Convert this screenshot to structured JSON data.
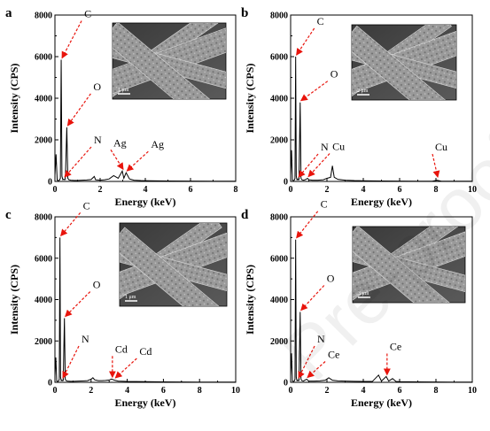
{
  "watermark": "Pre-proof",
  "chart_data": [
    {
      "type": "line",
      "panel": "a",
      "xlabel": "Energy (keV)",
      "ylabel": "Intensity (CPS)",
      "xlim": [
        0,
        8
      ],
      "ylim": [
        0,
        8000
      ],
      "xticks": [
        0,
        2,
        4,
        6,
        8
      ],
      "xtick_labels": [
        "0",
        "2",
        "4",
        "6",
        "8"
      ],
      "yticks": [
        0,
        2000,
        4000,
        6000,
        8000
      ],
      "ytick_labels": [
        "0",
        "2000",
        "4000",
        "6000",
        "8000"
      ],
      "inset_scale_label": "1 μm",
      "x": [
        0,
        0.05,
        0.1,
        0.15,
        0.2,
        0.24,
        0.277,
        0.31,
        0.35,
        0.392,
        0.42,
        0.46,
        0.525,
        0.57,
        0.62,
        0.7,
        0.85,
        1.0,
        1.2,
        1.4,
        1.6,
        1.74,
        1.8,
        1.9,
        2.0,
        2.2,
        2.4,
        2.6,
        2.8,
        2.98,
        3.05,
        3.15,
        3.3,
        3.5,
        3.8,
        4.2,
        5.0,
        6.0,
        7.0,
        8.0
      ],
      "y": [
        300,
        1300,
        60,
        40,
        60,
        150,
        5850,
        250,
        80,
        110,
        80,
        90,
        2600,
        150,
        80,
        60,
        50,
        50,
        60,
        70,
        90,
        240,
        80,
        70,
        60,
        80,
        120,
        280,
        150,
        500,
        150,
        420,
        120,
        60,
        40,
        30,
        20,
        15,
        10,
        10
      ],
      "annotations": [
        {
          "label": "C",
          "x": 0.277
        },
        {
          "label": "O",
          "x": 0.525
        },
        {
          "label": "N",
          "x": 0.392
        },
        {
          "label": "Ag",
          "x": 2.98
        },
        {
          "label": "Ag",
          "x": 3.15
        }
      ]
    },
    {
      "type": "line",
      "panel": "b",
      "xlabel": "Energy (keV)",
      "ylabel": "Intensity (CPS)",
      "xlim": [
        0,
        10
      ],
      "ylim": [
        0,
        8000
      ],
      "xticks": [
        0,
        2,
        4,
        6,
        8,
        10
      ],
      "xtick_labels": [
        "0",
        "2",
        "4",
        "6",
        "8",
        "10"
      ],
      "yticks": [
        0,
        2000,
        4000,
        6000,
        8000
      ],
      "ytick_labels": [
        "0",
        "2000",
        "4000",
        "6000",
        "8000"
      ],
      "inset_scale_label": "2 μm",
      "x": [
        0,
        0.05,
        0.1,
        0.15,
        0.2,
        0.24,
        0.277,
        0.31,
        0.35,
        0.392,
        0.42,
        0.46,
        0.525,
        0.57,
        0.62,
        0.7,
        0.8,
        0.93,
        1.0,
        1.2,
        1.5,
        1.8,
        2.0,
        2.2,
        2.3,
        2.4,
        2.6,
        3.0,
        3.5,
        4.0,
        5.0,
        6.0,
        7.0,
        7.8,
        8.05,
        8.3,
        9.0,
        10.0
      ],
      "y": [
        300,
        1500,
        60,
        40,
        60,
        150,
        6000,
        250,
        80,
        120,
        80,
        90,
        3800,
        150,
        80,
        60,
        80,
        150,
        80,
        60,
        60,
        80,
        150,
        200,
        750,
        200,
        100,
        60,
        40,
        30,
        20,
        15,
        10,
        10,
        60,
        10,
        10,
        10
      ],
      "annotations": [
        {
          "label": "C",
          "x": 0.277
        },
        {
          "label": "O",
          "x": 0.525
        },
        {
          "label": "N",
          "x": 0.392
        },
        {
          "label": "Cu",
          "x": 0.93
        },
        {
          "label": "Cu",
          "x": 8.05
        }
      ]
    },
    {
      "type": "line",
      "panel": "c",
      "xlabel": "Energy (keV)",
      "ylabel": "Intensity (CPS)",
      "xlim": [
        0,
        10
      ],
      "ylim": [
        0,
        8000
      ],
      "xticks": [
        0,
        2,
        4,
        6,
        8,
        10
      ],
      "xtick_labels": [
        "0",
        "2",
        "4",
        "6",
        "8",
        "10"
      ],
      "yticks": [
        0,
        2000,
        4000,
        6000,
        8000
      ],
      "ytick_labels": [
        "0",
        "2000",
        "4000",
        "6000",
        "8000"
      ],
      "inset_scale_label": "1 μm",
      "x": [
        0,
        0.05,
        0.1,
        0.15,
        0.2,
        0.24,
        0.277,
        0.31,
        0.35,
        0.392,
        0.42,
        0.46,
        0.525,
        0.57,
        0.62,
        0.7,
        0.85,
        1.0,
        1.3,
        1.6,
        1.8,
        2.0,
        2.1,
        2.2,
        2.4,
        2.6,
        2.8,
        3.0,
        3.13,
        3.3,
        3.5,
        4.0,
        5.0,
        6.0,
        7.0,
        8.0,
        9.0,
        10.0
      ],
      "y": [
        300,
        1200,
        60,
        40,
        60,
        150,
        7000,
        250,
        80,
        110,
        80,
        90,
        3100,
        150,
        80,
        60,
        50,
        50,
        60,
        70,
        80,
        150,
        220,
        120,
        80,
        80,
        90,
        110,
        160,
        100,
        60,
        40,
        30,
        20,
        15,
        10,
        10,
        10
      ],
      "annotations": [
        {
          "label": "C",
          "x": 0.277
        },
        {
          "label": "O",
          "x": 0.525
        },
        {
          "label": "N",
          "x": 0.392
        },
        {
          "label": "Cd",
          "x": 3.13
        },
        {
          "label": "Cd",
          "x": 3.3
        }
      ]
    },
    {
      "type": "line",
      "panel": "d",
      "xlabel": "Energy (keV)",
      "ylabel": "Intensity (CPS)",
      "xlim": [
        0,
        10
      ],
      "ylim": [
        0,
        8000
      ],
      "xticks": [
        0,
        2,
        4,
        6,
        8,
        10
      ],
      "xtick_labels": [
        "0",
        "2",
        "4",
        "6",
        "8",
        "10"
      ],
      "yticks": [
        0,
        2000,
        4000,
        6000,
        8000
      ],
      "ytick_labels": [
        "0",
        "2000",
        "4000",
        "6000",
        "8000"
      ],
      "inset_scale_label": "3 μm",
      "x": [
        0,
        0.05,
        0.1,
        0.15,
        0.2,
        0.24,
        0.277,
        0.31,
        0.35,
        0.392,
        0.42,
        0.46,
        0.525,
        0.57,
        0.62,
        0.7,
        0.88,
        1.0,
        1.3,
        1.6,
        1.9,
        2.1,
        2.3,
        2.6,
        3.0,
        3.5,
        4.0,
        4.5,
        4.84,
        5.0,
        5.26,
        5.4,
        5.61,
        5.8,
        6.0,
        7.0,
        8.0,
        9.0,
        10.0
      ],
      "y": [
        300,
        1400,
        60,
        40,
        60,
        150,
        6900,
        250,
        80,
        110,
        80,
        90,
        3400,
        150,
        80,
        60,
        150,
        60,
        60,
        70,
        100,
        220,
        100,
        70,
        60,
        50,
        40,
        40,
        350,
        60,
        280,
        60,
        180,
        40,
        30,
        20,
        15,
        10,
        10
      ],
      "annotations": [
        {
          "label": "C",
          "x": 0.277
        },
        {
          "label": "O",
          "x": 0.525
        },
        {
          "label": "N",
          "x": 0.392
        },
        {
          "label": "Ce",
          "x": 0.88
        },
        {
          "label": "Ce",
          "x": 5.26
        }
      ]
    }
  ]
}
